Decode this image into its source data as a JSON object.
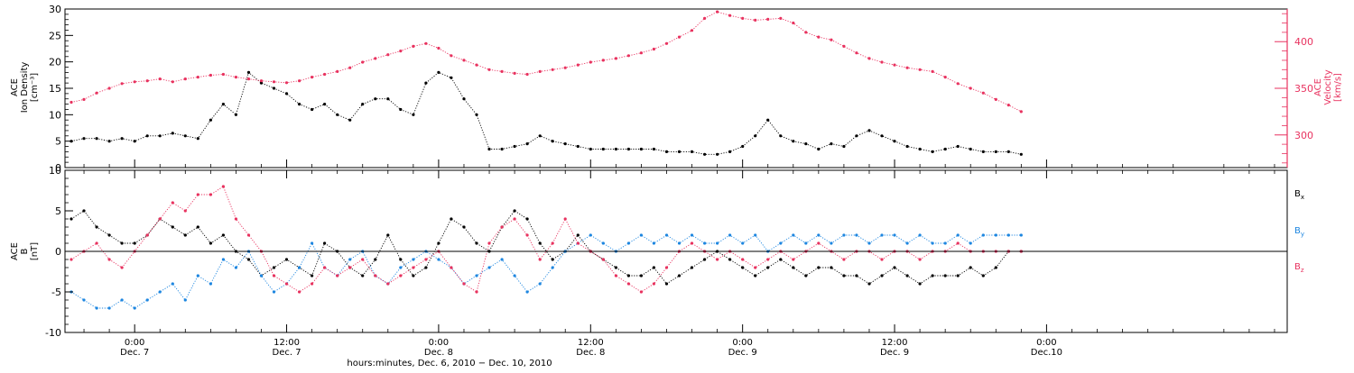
{
  "colors": {
    "black": "#000000",
    "red": "#e8325f",
    "blue": "#1d86e0"
  },
  "x_axis": {
    "title": "hours:minutes, Dec. 6, 2010 − Dec. 10, 2010",
    "range_hours": [
      -5.5,
      91
    ],
    "ticks": [
      {
        "hour": 0,
        "time": "0:00",
        "day": "Dec. 7"
      },
      {
        "hour": 12,
        "time": "12:00",
        "day": "Dec. 7"
      },
      {
        "hour": 24,
        "time": "0:00",
        "day": "Dec. 8"
      },
      {
        "hour": 36,
        "time": "12:00",
        "day": "Dec. 8"
      },
      {
        "hour": 48,
        "time": "0:00",
        "day": "Dec. 9"
      },
      {
        "hour": 60,
        "time": "12:00",
        "day": "Dec. 9"
      },
      {
        "hour": 72,
        "time": "0:00",
        "day": "Dec.10"
      }
    ]
  },
  "chart_data": [
    {
      "type": "scatter",
      "panel": "top",
      "ylabel_left": [
        "ACE",
        "Ion Density",
        "[cm⁻³]"
      ],
      "ylabel_right": [
        "ACE",
        "Velocity",
        "[km/s]"
      ],
      "ylim_left": [
        0,
        30
      ],
      "yticks_left": [
        0,
        5,
        10,
        15,
        20,
        25,
        30
      ],
      "ylim_right": [
        265,
        435
      ],
      "yticks_right": [
        300,
        350,
        400
      ],
      "series": [
        {
          "axis": "left",
          "color": "#000000",
          "x": [
            -5,
            -4,
            -3,
            -2,
            -1,
            0,
            1,
            2,
            3,
            4,
            5,
            6,
            7,
            8,
            9,
            10,
            11,
            12,
            13,
            14,
            15,
            16,
            17,
            18,
            19,
            20,
            21,
            22,
            23,
            24,
            25,
            26,
            27,
            28,
            29,
            30,
            31,
            32,
            33,
            34,
            35,
            36,
            37,
            38,
            39,
            40,
            41,
            42,
            43,
            44,
            45,
            46,
            47,
            48,
            49,
            50,
            51,
            52,
            53,
            54,
            55,
            56,
            57,
            58,
            59,
            60,
            61,
            62,
            63,
            64,
            65,
            66,
            67,
            68,
            69,
            70
          ],
          "y": [
            5,
            5.5,
            5.5,
            5,
            5.5,
            5,
            6,
            6,
            6.5,
            6,
            5.5,
            9,
            12,
            10,
            18,
            16,
            15,
            14,
            12,
            11,
            12,
            10,
            9,
            12,
            13,
            13,
            11,
            10,
            16,
            18,
            17,
            13,
            10,
            3.5,
            3.5,
            4,
            4.5,
            6,
            5,
            4.5,
            4,
            3.5,
            3.5,
            3.5,
            3.5,
            3.5,
            3.5,
            3,
            3,
            3,
            2.5,
            2.5,
            3,
            4,
            6,
            9,
            6,
            5,
            4.5,
            3.5,
            4.5,
            4,
            6,
            7,
            6,
            5,
            4,
            3.5,
            3,
            3.5,
            4,
            3.5,
            3,
            3,
            3,
            2.5
          ]
        },
        {
          "axis": "right",
          "color": "#e8325f",
          "x": [
            -5,
            -4,
            -3,
            -2,
            -1,
            0,
            1,
            2,
            3,
            4,
            5,
            6,
            7,
            8,
            9,
            10,
            11,
            12,
            13,
            14,
            15,
            16,
            17,
            18,
            19,
            20,
            21,
            22,
            23,
            24,
            25,
            26,
            27,
            28,
            29,
            30,
            31,
            32,
            33,
            34,
            35,
            36,
            37,
            38,
            39,
            40,
            41,
            42,
            43,
            44,
            45,
            46,
            47,
            48,
            49,
            50,
            51,
            52,
            53,
            54,
            55,
            56,
            57,
            58,
            59,
            60,
            61,
            62,
            63,
            64,
            65,
            66,
            67,
            68,
            69,
            70
          ],
          "y": [
            335,
            338,
            345,
            350,
            355,
            357,
            358,
            360,
            357,
            360,
            362,
            364,
            365,
            362,
            360,
            358,
            357,
            356,
            358,
            362,
            365,
            368,
            372,
            378,
            382,
            386,
            390,
            395,
            398,
            393,
            385,
            380,
            375,
            370,
            368,
            366,
            365,
            368,
            370,
            372,
            375,
            378,
            380,
            382,
            385,
            388,
            392,
            398,
            405,
            412,
            425,
            432,
            428,
            425,
            423,
            424,
            425,
            420,
            410,
            405,
            402,
            395,
            388,
            382,
            378,
            375,
            372,
            370,
            368,
            362,
            355,
            350,
            345,
            338,
            332,
            325
          ]
        }
      ]
    },
    {
      "type": "scatter",
      "panel": "bottom",
      "ylabel_left": [
        "ACE",
        "B",
        "[nT]"
      ],
      "ylim": [
        -10,
        10
      ],
      "yticks": [
        -10,
        -5,
        0,
        5,
        10
      ],
      "legend_placement": "right",
      "series": [
        {
          "name": "B",
          "sub": "x",
          "color": "#000000",
          "x": [
            -5,
            -4,
            -3,
            -2,
            -1,
            0,
            1,
            2,
            3,
            4,
            5,
            6,
            7,
            8,
            9,
            10,
            11,
            12,
            13,
            14,
            15,
            16,
            17,
            18,
            19,
            20,
            21,
            22,
            23,
            24,
            25,
            26,
            27,
            28,
            29,
            30,
            31,
            32,
            33,
            34,
            35,
            36,
            37,
            38,
            39,
            40,
            41,
            42,
            43,
            44,
            45,
            46,
            47,
            48,
            49,
            50,
            51,
            52,
            53,
            54,
            55,
            56,
            57,
            58,
            59,
            60,
            61,
            62,
            63,
            64,
            65,
            66,
            67,
            68,
            69,
            70
          ],
          "y": [
            4,
            5,
            3,
            2,
            1,
            1,
            2,
            4,
            3,
            2,
            3,
            1,
            2,
            0,
            -1,
            -3,
            -2,
            -1,
            -2,
            -3,
            1,
            0,
            -2,
            -3,
            -1,
            2,
            -1,
            -3,
            -2,
            1,
            4,
            3,
            1,
            0,
            3,
            5,
            4,
            1,
            -1,
            0,
            2,
            0,
            -1,
            -2,
            -3,
            -3,
            -2,
            -4,
            -3,
            -2,
            -1,
            0,
            -1,
            -2,
            -3,
            -2,
            -1,
            -2,
            -3,
            -2,
            -2,
            -3,
            -3,
            -4,
            -3,
            -2,
            -3,
            -4,
            -3,
            -3,
            -3,
            -2,
            -3,
            -2,
            0,
            0
          ]
        },
        {
          "name": "B",
          "sub": "y",
          "color": "#1d86e0",
          "x": [
            -5,
            -4,
            -3,
            -2,
            -1,
            0,
            1,
            2,
            3,
            4,
            5,
            6,
            7,
            8,
            9,
            10,
            11,
            12,
            13,
            14,
            15,
            16,
            17,
            18,
            19,
            20,
            21,
            22,
            23,
            24,
            25,
            26,
            27,
            28,
            29,
            30,
            31,
            32,
            33,
            34,
            35,
            36,
            37,
            38,
            39,
            40,
            41,
            42,
            43,
            44,
            45,
            46,
            47,
            48,
            49,
            50,
            51,
            52,
            53,
            54,
            55,
            56,
            57,
            58,
            59,
            60,
            61,
            62,
            63,
            64,
            65,
            66,
            67,
            68,
            69,
            70
          ],
          "y": [
            -5,
            -6,
            -7,
            -7,
            -6,
            -7,
            -6,
            -5,
            -4,
            -6,
            -3,
            -4,
            -1,
            -2,
            0,
            -3,
            -5,
            -4,
            -2,
            1,
            -2,
            -3,
            -1,
            0,
            -3,
            -4,
            -2,
            -1,
            0,
            -1,
            -2,
            -4,
            -3,
            -2,
            -1,
            -3,
            -5,
            -4,
            -2,
            0,
            1,
            2,
            1,
            0,
            1,
            2,
            1,
            2,
            1,
            2,
            1,
            1,
            2,
            1,
            2,
            0,
            1,
            2,
            1,
            2,
            1,
            2,
            2,
            1,
            2,
            2,
            1,
            2,
            1,
            1,
            2,
            1,
            2,
            2,
            2,
            2
          ]
        },
        {
          "name": "B",
          "sub": "z",
          "color": "#e8325f",
          "x": [
            -5,
            -4,
            -3,
            -2,
            -1,
            0,
            1,
            2,
            3,
            4,
            5,
            6,
            7,
            8,
            9,
            10,
            11,
            12,
            13,
            14,
            15,
            16,
            17,
            18,
            19,
            20,
            21,
            22,
            23,
            24,
            25,
            26,
            27,
            28,
            29,
            30,
            31,
            32,
            33,
            34,
            35,
            36,
            37,
            38,
            39,
            40,
            41,
            42,
            43,
            44,
            45,
            46,
            47,
            48,
            49,
            50,
            51,
            52,
            53,
            54,
            55,
            56,
            57,
            58,
            59,
            60,
            61,
            62,
            63,
            64,
            65,
            66,
            67,
            68,
            69,
            70
          ],
          "y": [
            -1,
            0,
            1,
            -1,
            -2,
            0,
            2,
            4,
            6,
            5,
            7,
            7,
            8,
            4,
            2,
            0,
            -3,
            -4,
            -5,
            -4,
            -2,
            -3,
            -2,
            -1,
            -3,
            -4,
            -3,
            -2,
            -1,
            0,
            -2,
            -4,
            -5,
            1,
            3,
            4,
            2,
            -1,
            1,
            4,
            1,
            0,
            -1,
            -3,
            -4,
            -5,
            -4,
            -2,
            0,
            1,
            0,
            -1,
            0,
            -1,
            -2,
            -1,
            0,
            -1,
            0,
            1,
            0,
            -1,
            0,
            0,
            -1,
            0,
            0,
            -1,
            0,
            0,
            1,
            0,
            0,
            0,
            0,
            0
          ]
        }
      ]
    }
  ]
}
